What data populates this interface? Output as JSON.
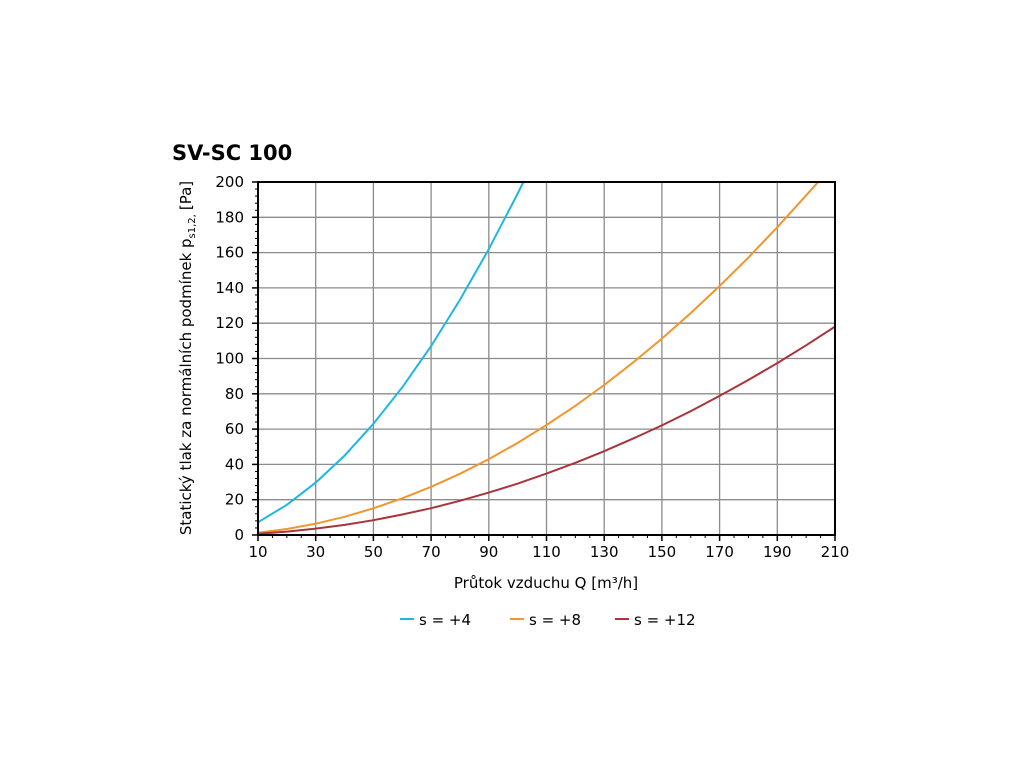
{
  "chart_data": {
    "type": "line",
    "title": "SV-SC 100",
    "xlabel": "Průtok vzduchu Q [m³/h]",
    "ylabel_main": "Statický tlak za normálních podmínek p",
    "ylabel_sub": "s1,2,",
    "ylabel_unit": "[Pa]",
    "xlim": [
      10,
      210
    ],
    "ylim": [
      0,
      200
    ],
    "xticks": [
      10,
      30,
      50,
      70,
      90,
      110,
      130,
      150,
      170,
      190,
      210
    ],
    "yticks": [
      0,
      20,
      40,
      60,
      80,
      100,
      120,
      140,
      160,
      180,
      200
    ],
    "grid": true,
    "legend_position": "bottom",
    "series": [
      {
        "name": "s = +4",
        "color": "#1fb6e0",
        "x": [
          10,
          20,
          30,
          40,
          50,
          60,
          70,
          80,
          90,
          100,
          102
        ],
        "y": [
          7.2,
          17.1,
          29.7,
          45,
          63,
          83.7,
          107,
          133.2,
          162,
          193.5,
          200
        ]
      },
      {
        "name": "s = +8",
        "color": "#f0962e",
        "x": [
          10,
          20,
          30,
          40,
          50,
          60,
          70,
          80,
          90,
          100,
          110,
          120,
          130,
          140,
          150,
          160,
          170,
          180,
          190,
          200,
          204
        ],
        "y": [
          1.3,
          3.4,
          6.4,
          10.3,
          15.1,
          20.8,
          27.3,
          34.7,
          43,
          52.2,
          62.3,
          73.2,
          85,
          97.7,
          111.3,
          125.8,
          141.1,
          157.3,
          174.4,
          192.4,
          199.8
        ]
      },
      {
        "name": "s = +12",
        "color": "#a8343c",
        "x": [
          10,
          20,
          30,
          40,
          50,
          60,
          70,
          80,
          90,
          100,
          110,
          120,
          130,
          140,
          150,
          160,
          170,
          180,
          190,
          200,
          210
        ],
        "y": [
          0.7,
          1.9,
          3.6,
          5.7,
          8.4,
          11.6,
          15.2,
          19.4,
          24,
          29.1,
          34.8,
          40.9,
          47.5,
          54.6,
          62.1,
          70.2,
          78.8,
          87.9,
          97.4,
          107.5,
          118.1
        ]
      }
    ]
  }
}
